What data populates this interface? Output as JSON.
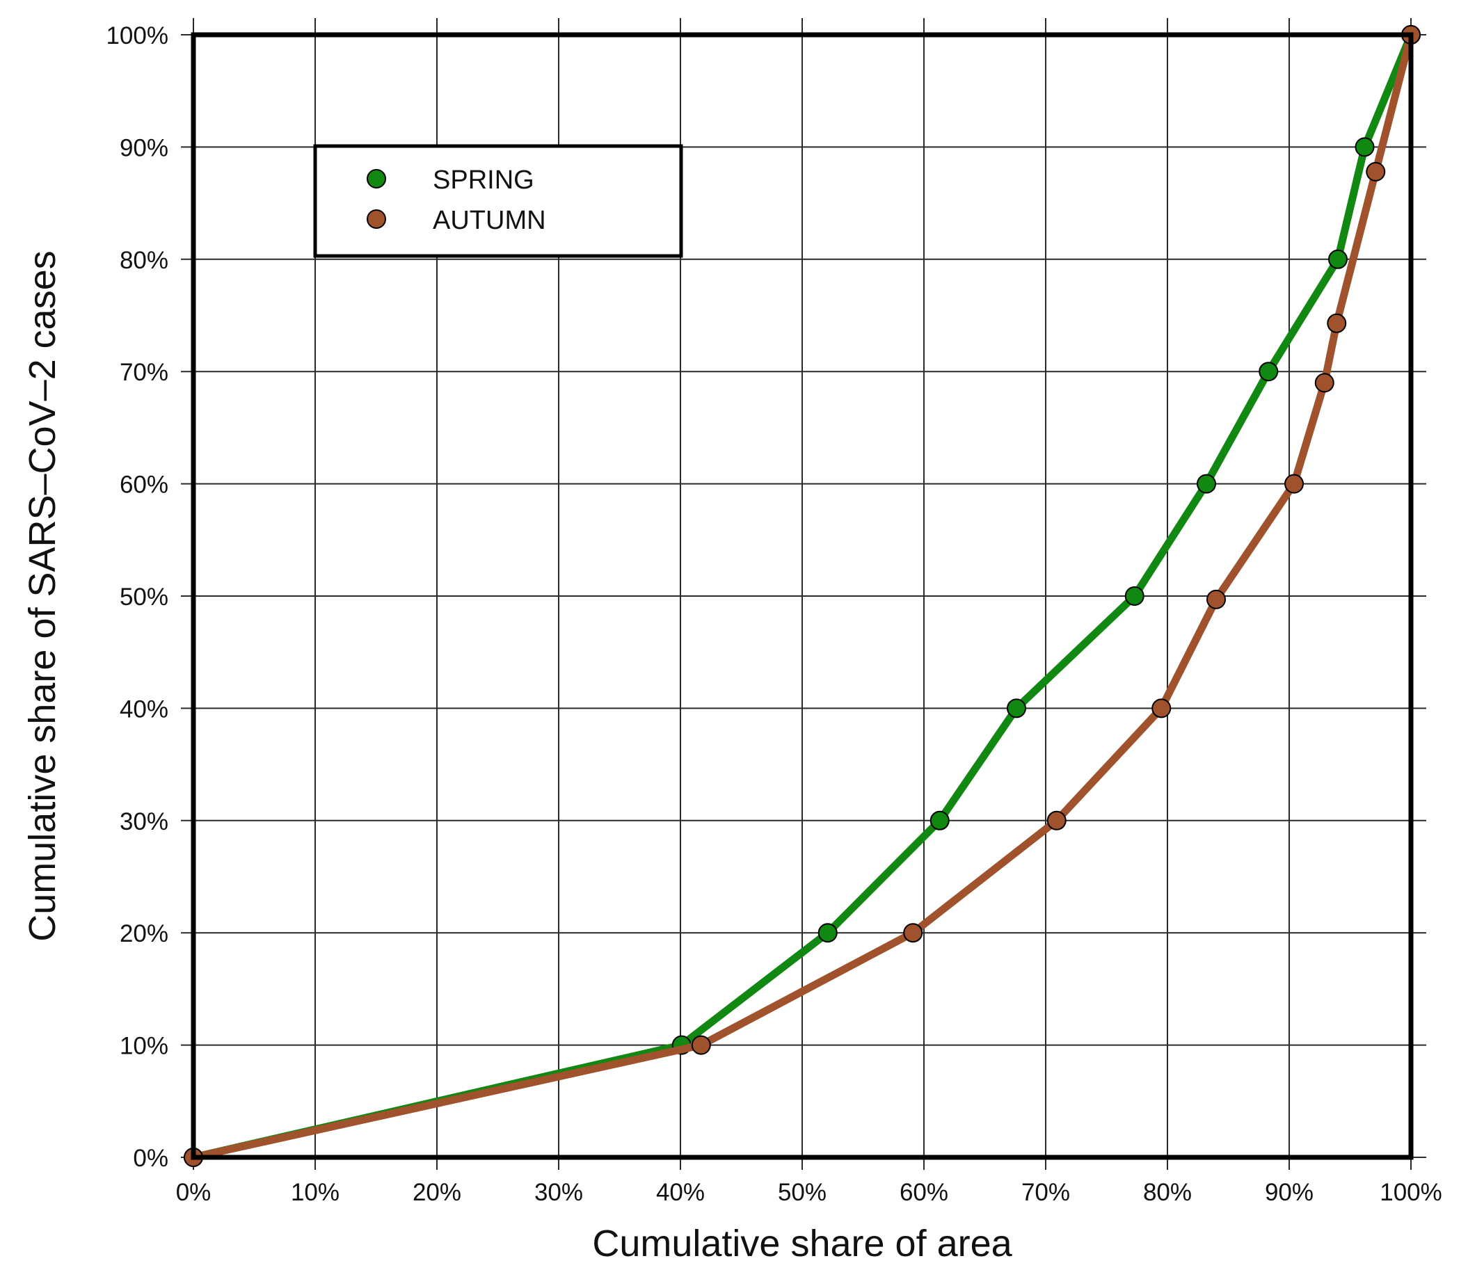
{
  "chart_data": {
    "type": "line",
    "xlabel": "Cumulative share of area",
    "ylabel": "Cumulative share of SARS–CoV–2 cases",
    "xlim": [
      0,
      100
    ],
    "ylim": [
      0,
      100
    ],
    "x_ticks": [
      "0%",
      "10%",
      "20%",
      "30%",
      "40%",
      "50%",
      "60%",
      "70%",
      "80%",
      "90%",
      "100%"
    ],
    "y_ticks": [
      "0%",
      "10%",
      "20%",
      "30%",
      "40%",
      "50%",
      "60%",
      "70%",
      "80%",
      "90%",
      "100%"
    ],
    "grid": true,
    "legend_position": "top-left",
    "series": [
      {
        "name": "SPRING",
        "color": "#118811",
        "points": [
          [
            0,
            0
          ],
          [
            40.1,
            10
          ],
          [
            52.1,
            20
          ],
          [
            61.3,
            30
          ],
          [
            67.6,
            40
          ],
          [
            77.3,
            50
          ],
          [
            83.2,
            60
          ],
          [
            88.3,
            70
          ],
          [
            94,
            80
          ],
          [
            96.2,
            90
          ],
          [
            100,
            100
          ]
        ]
      },
      {
        "name": "AUTUMN",
        "color": "#a0522d",
        "points": [
          [
            0,
            0
          ],
          [
            41.7,
            10
          ],
          [
            59.1,
            20
          ],
          [
            70.9,
            30
          ],
          [
            79.5,
            40
          ],
          [
            84,
            49.7
          ],
          [
            90.4,
            60
          ],
          [
            92.9,
            69
          ],
          [
            93.9,
            74.3
          ],
          [
            97.1,
            87.8
          ],
          [
            100,
            100
          ]
        ]
      }
    ]
  }
}
